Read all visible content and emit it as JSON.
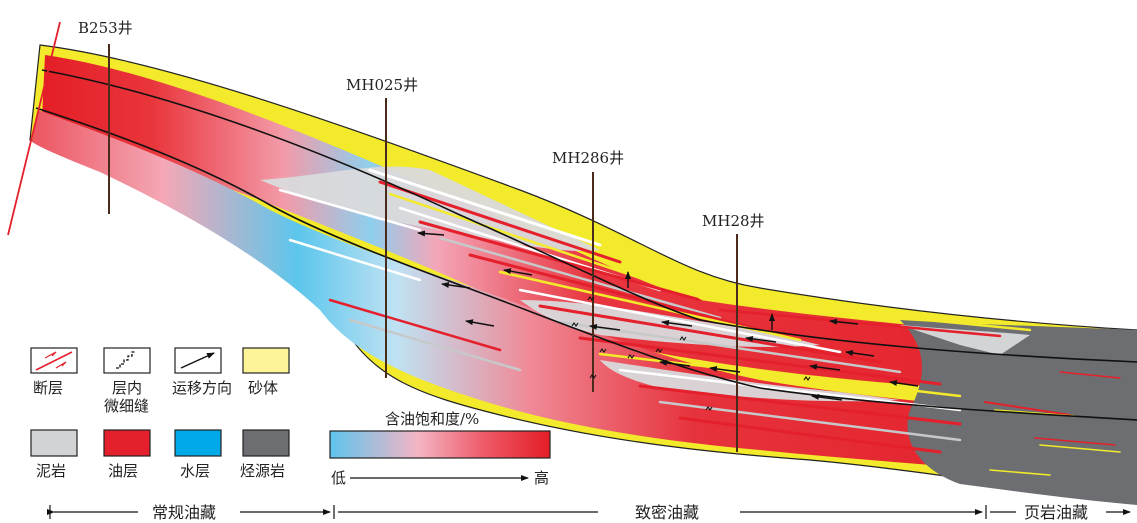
{
  "wells": [
    {
      "name": "B253井"
    },
    {
      "name": "MH025井"
    },
    {
      "name": "MH286井"
    },
    {
      "name": "MH28井"
    }
  ],
  "legend": {
    "fault": "断层",
    "fracture_line1": "层内",
    "fracture_line2": "微细缝",
    "migration": "运移方向",
    "sand": "砂体",
    "mudstone": "泥岩",
    "oil_layer": "油层",
    "water_layer": "水层",
    "source_rock": "烃源岩",
    "saturation_title": "含油饱和度/%",
    "saturation_low": "低",
    "saturation_high": "高"
  },
  "zones": {
    "conventional": "常规油藏",
    "tight": "致密油藏",
    "shale": "页岩油藏"
  },
  "colors": {
    "sand": "#f2ea2a",
    "oil": "#e4202c",
    "water": "#4fc0e8",
    "mudstone": "#d2d3d5",
    "source_rock": "#6d6e71",
    "legend_sand": "#fdf49a",
    "legend_water": "#00a9e8"
  }
}
